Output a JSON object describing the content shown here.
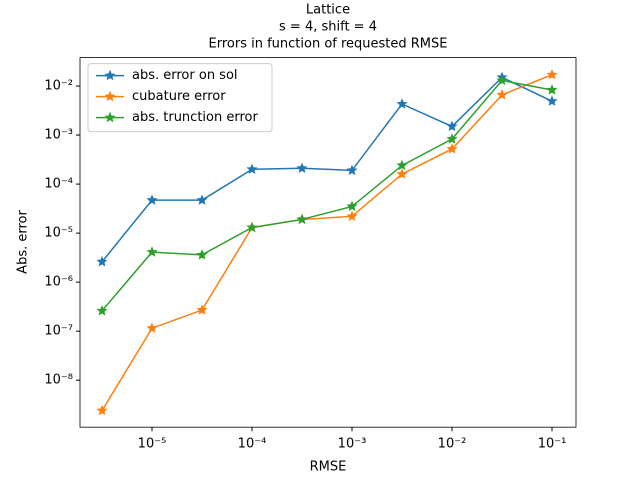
{
  "chart_data": {
    "type": "line",
    "title_lines": [
      "Lattice",
      "s = 4, shift = 4",
      "Errors in function of requested RMSE"
    ],
    "x_label": "RMSE",
    "y_label": "Abs. error",
    "log_x": true,
    "log_y": true,
    "legend": "upper left",
    "marker": "star",
    "x": [
      3.1623e-06,
      1e-05,
      3.1623e-05,
      0.0001,
      0.00031623,
      0.001,
      0.0031623,
      0.01,
      0.031623,
      0.1
    ],
    "series": [
      {
        "name": "abs. error on sol",
        "color": "#1f77b4",
        "values": [
          2.6e-06,
          4.7e-05,
          4.7e-05,
          0.0002,
          0.00021,
          0.00019,
          0.0043,
          0.0015,
          0.015,
          0.0049
        ]
      },
      {
        "name": "cubature error",
        "color": "#ff7f0e",
        "values": [
          2.4e-09,
          1.15e-07,
          2.7e-07,
          1.3e-05,
          1.9e-05,
          2.2e-05,
          0.00016,
          0.00052,
          0.0066,
          0.017
        ]
      },
      {
        "name": "abs. trunction error",
        "color": "#2ca02c",
        "values": [
          2.6e-07,
          4.1e-06,
          3.6e-06,
          1.3e-05,
          1.9e-05,
          3.5e-05,
          0.00024,
          0.00083,
          0.013,
          0.0083
        ]
      }
    ],
    "xlim": [
      1.9055e-06,
      0.17378
    ],
    "ylim": [
      1.1e-09,
      0.038
    ],
    "xticks": [
      {
        "value": 1e-05,
        "label": "10⁻⁵"
      },
      {
        "value": 0.0001,
        "label": "10⁻⁴"
      },
      {
        "value": 0.001,
        "label": "10⁻³"
      },
      {
        "value": 0.01,
        "label": "10⁻²"
      },
      {
        "value": 0.1,
        "label": "10⁻¹"
      }
    ],
    "yticks": [
      {
        "value": 1e-08,
        "label": "10⁻⁸"
      },
      {
        "value": 1e-07,
        "label": "10⁻⁷"
      },
      {
        "value": 1e-06,
        "label": "10⁻⁶"
      },
      {
        "value": 1e-05,
        "label": "10⁻⁵"
      },
      {
        "value": 0.0001,
        "label": "10⁻⁴"
      },
      {
        "value": 0.001,
        "label": "10⁻³"
      },
      {
        "value": 0.01,
        "label": "10⁻²"
      }
    ]
  }
}
